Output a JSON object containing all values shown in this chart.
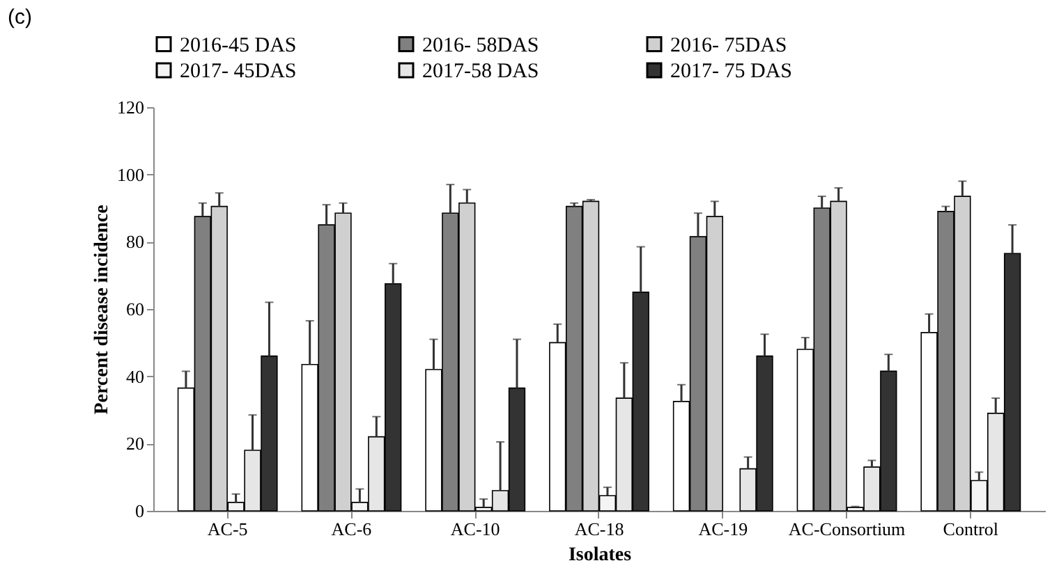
{
  "chart_data": {
    "type": "bar",
    "title": "(c)",
    "xlabel": "Isolates",
    "ylabel": "Percent disease incidence",
    "categories": [
      "AC-5",
      "AC-6",
      "AC-10",
      "AC-18",
      "AC-19",
      "AC-Consortium",
      "Control"
    ],
    "series": [
      {
        "name": "2016-45 DAS",
        "color": "#ffffff",
        "values": [
          36.5,
          43.5,
          42,
          50,
          32.5,
          48,
          53
        ],
        "errors": [
          [
            36.5,
            41.5
          ],
          [
            43.5,
            56.5
          ],
          [
            42,
            51
          ],
          [
            50,
            55.5
          ],
          [
            32.5,
            37.5
          ],
          [
            48,
            51.5
          ],
          [
            53,
            58.5
          ]
        ]
      },
      {
        "name": "2016- 58DAS",
        "color": "#808080",
        "values": [
          87.5,
          85,
          88.5,
          90.5,
          81.5,
          90,
          89
        ],
        "errors": [
          [
            87.5,
            91.5
          ],
          [
            85,
            91
          ],
          [
            88.5,
            97
          ],
          [
            90.5,
            91.5
          ],
          [
            81.5,
            88.5
          ],
          [
            90,
            93.5
          ],
          [
            89,
            90.5
          ]
        ]
      },
      {
        "name": "2016- 75DAS",
        "color": "#d0d0d0",
        "values": [
          90.5,
          88.5,
          91.5,
          92,
          87.5,
          92,
          93.5
        ],
        "errors": [
          [
            90.5,
            94.5
          ],
          [
            88.5,
            91.5
          ],
          [
            91.5,
            95.5
          ],
          [
            92,
            92.5
          ],
          [
            87.5,
            92
          ],
          [
            92,
            96
          ],
          [
            93.5,
            98
          ]
        ]
      },
      {
        "name": "2017- 45DAS",
        "color": "#f4f4f4",
        "values": [
          2.5,
          2.5,
          1,
          4.5,
          null,
          1,
          9
        ],
        "errors": [
          [
            2.5,
            5
          ],
          [
            2.5,
            6.5
          ],
          [
            1,
            3.5
          ],
          [
            4.5,
            7
          ],
          null,
          [
            1,
            1.3
          ],
          [
            9,
            11.5
          ]
        ]
      },
      {
        "name": "2017-58  DAS",
        "color": "#e6e6e6",
        "values": [
          18,
          22,
          6,
          33.5,
          12.5,
          13,
          29
        ],
        "errors": [
          [
            18,
            28.5
          ],
          [
            22,
            28
          ],
          [
            6,
            20.5
          ],
          [
            33.5,
            44
          ],
          [
            12.5,
            16
          ],
          [
            13,
            15
          ],
          [
            29,
            33.5
          ]
        ]
      },
      {
        "name": "2017- 75  DAS",
        "color": "#333333",
        "values": [
          46,
          67.5,
          36.5,
          65,
          46,
          41.5,
          76.5
        ],
        "errors": [
          [
            46,
            62
          ],
          [
            67.5,
            73.5
          ],
          [
            36.5,
            51
          ],
          [
            65,
            78.5
          ],
          [
            46,
            52.5
          ],
          [
            41.5,
            46.5
          ],
          [
            76.5,
            85
          ]
        ]
      }
    ],
    "ylim": [
      0,
      120
    ],
    "yticks": [
      0,
      20,
      40,
      60,
      80,
      100,
      120
    ],
    "grid": false,
    "legend": "top"
  }
}
